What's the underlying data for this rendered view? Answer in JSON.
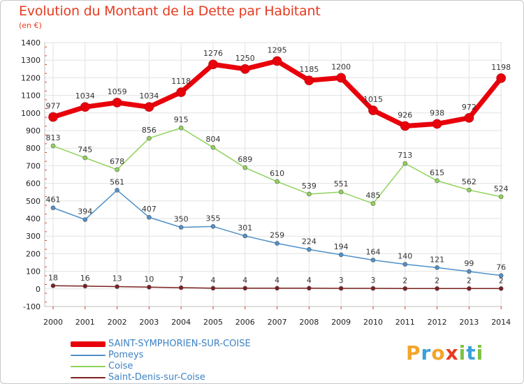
{
  "title": "Evolution du Montant de la Dette par Habitant",
  "subtitle": "(en €)",
  "logo_letters": [
    {
      "ch": "P",
      "color": "#f2a52a"
    },
    {
      "ch": "r",
      "color": "#3ba0d8"
    },
    {
      "ch": "o",
      "color": "#f2a52a"
    },
    {
      "ch": "x",
      "color": "#e63a1f"
    },
    {
      "ch": "i",
      "color": "#7cc242"
    },
    {
      "ch": "t",
      "color": "#3ba0d8"
    },
    {
      "ch": "i",
      "color": "#7cc242"
    }
  ],
  "chart_data": {
    "type": "line",
    "x": [
      "2000",
      "2001",
      "2002",
      "2003",
      "2004",
      "2005",
      "2006",
      "2007",
      "2008",
      "2009",
      "2010",
      "2011",
      "2012",
      "2013",
      "2014"
    ],
    "ylim": [
      -100,
      1400
    ],
    "yticks": [
      -100,
      0,
      100,
      200,
      300,
      400,
      500,
      600,
      700,
      800,
      900,
      1000,
      1100,
      1200,
      1300,
      1400
    ],
    "grid": true,
    "legend_position": "bottom-left",
    "series": [
      {
        "name": "SAINT-SYMPHORIEN-SUR-COISE",
        "color": "#e8000b",
        "values": [
          977,
          1034,
          1059,
          1034,
          1118,
          1276,
          1250,
          1295,
          1185,
          1200,
          1015,
          926,
          938,
          972,
          1198
        ]
      },
      {
        "name": "Pomeys",
        "color": "#4f90c9",
        "values": [
          461,
          394,
          561,
          407,
          350,
          355,
          301,
          259,
          224,
          194,
          164,
          140,
          121,
          99,
          76
        ]
      },
      {
        "name": "Coise",
        "color": "#8fd35a",
        "values": [
          813,
          745,
          678,
          856,
          915,
          804,
          689,
          610,
          539,
          551,
          485,
          713,
          615,
          562,
          524
        ]
      },
      {
        "name": "Saint-Denis-sur-Coise",
        "color": "#7a2020",
        "values": [
          18,
          16,
          13,
          10,
          7,
          4,
          4,
          4,
          4,
          3,
          3,
          2,
          2,
          2,
          2
        ]
      }
    ]
  }
}
